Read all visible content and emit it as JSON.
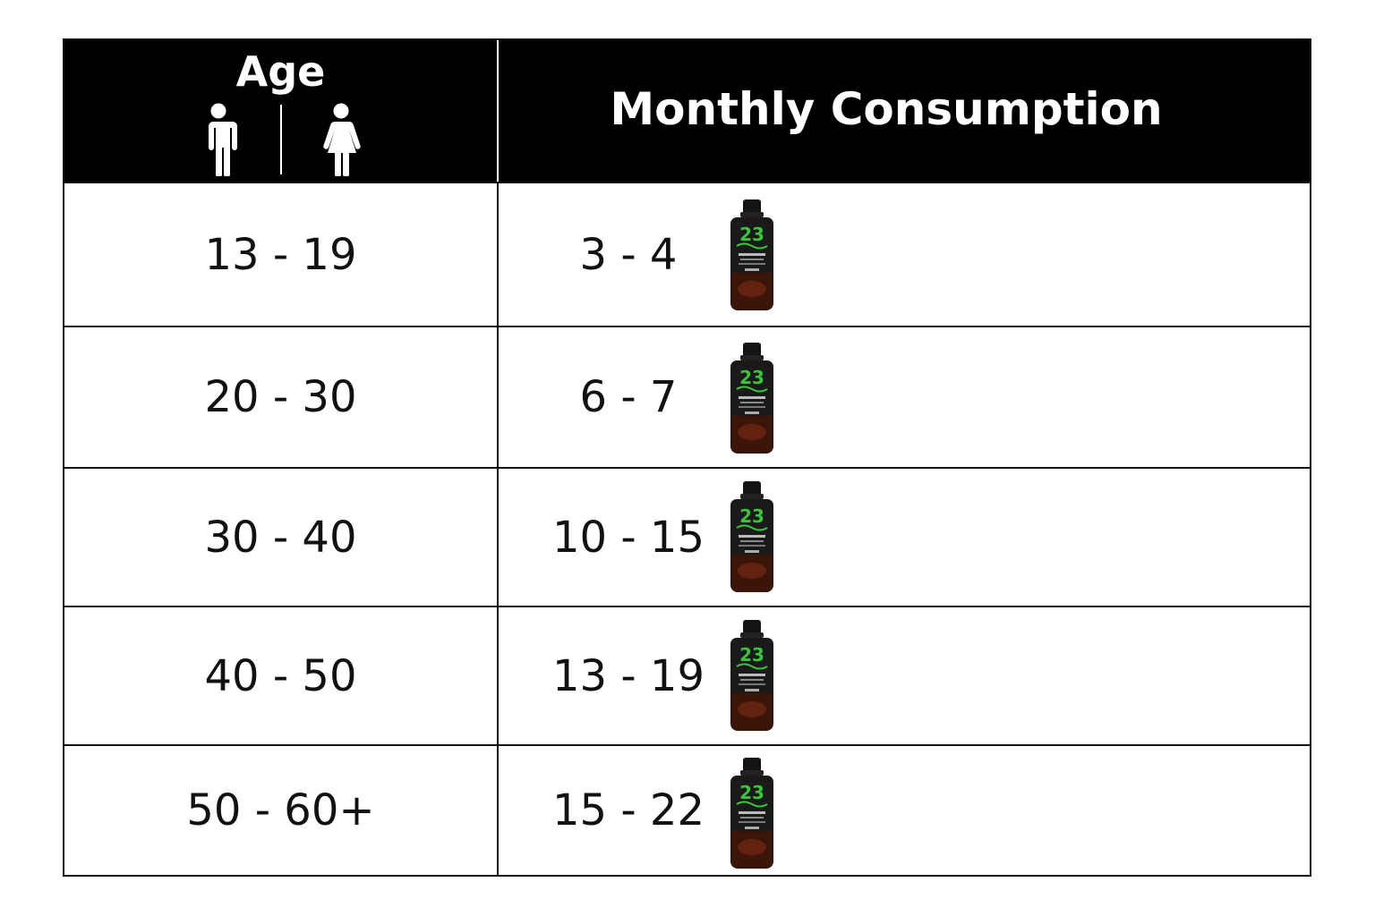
{
  "header": {
    "age_label": "Age",
    "consumption_label": "Monthly Consumption",
    "icons": [
      "male-icon",
      "female-icon"
    ]
  },
  "rows": [
    {
      "age": "13 - 19",
      "consumption": "3 - 4"
    },
    {
      "age": "20 - 30",
      "consumption": "6 - 7"
    },
    {
      "age": "30 - 40",
      "consumption": "10 - 15"
    },
    {
      "age": "40 - 50",
      "consumption": "13 - 19"
    },
    {
      "age": "50 - 60+",
      "consumption": "15 - 22"
    }
  ],
  "colors": {
    "header_bg": "#000000",
    "header_text": "#ffffff",
    "bottle_body": "#1a1a1a",
    "bottle_logo": "#3cc23c",
    "bottle_amber": "#6b2410"
  }
}
